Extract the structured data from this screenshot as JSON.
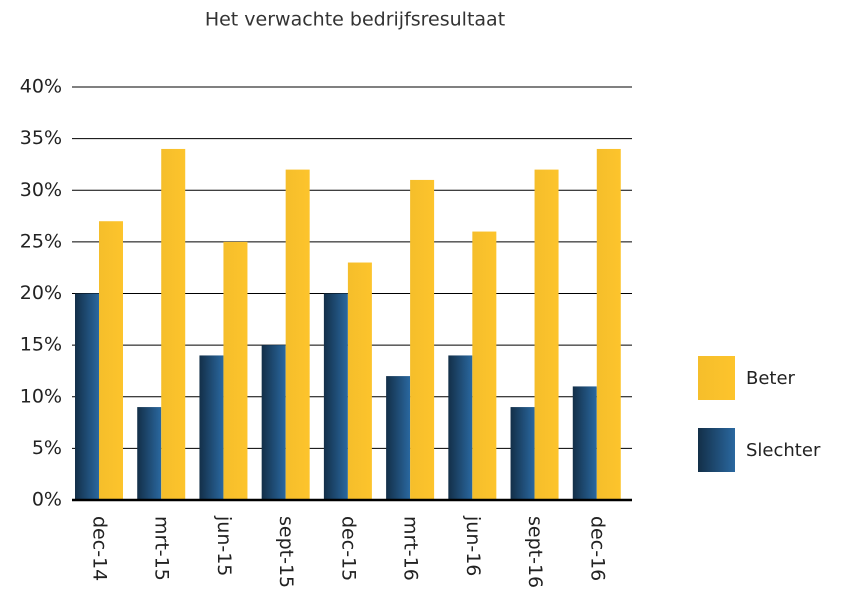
{
  "chart_data": {
    "type": "bar",
    "title": "Het verwachte bedrijfsresultaat",
    "categories": [
      "dec-14",
      "mrt-15",
      "jun-15",
      "sept-15",
      "dec-15",
      "mrt-16",
      "jun-16",
      "sept-16",
      "dec-16"
    ],
    "series": [
      {
        "name": "Slechter",
        "color": "#2a68a0",
        "values": [
          20,
          9,
          14,
          15,
          20,
          12,
          14,
          9,
          11
        ]
      },
      {
        "name": "Beter",
        "color": "#fdc42c",
        "values": [
          27,
          34,
          25,
          32,
          23,
          31,
          26,
          32,
          34
        ]
      }
    ],
    "ylim": [
      0,
      40
    ],
    "yticks": [
      {
        "value": 0,
        "label": "0%"
      },
      {
        "value": 5,
        "label": "5%"
      },
      {
        "value": 10,
        "label": "10%"
      },
      {
        "value": 15,
        "label": "15%"
      },
      {
        "value": 20,
        "label": "20%"
      },
      {
        "value": 25,
        "label": "25%"
      },
      {
        "value": 30,
        "label": "30%"
      },
      {
        "value": 35,
        "label": "35%"
      },
      {
        "value": 40,
        "label": "40%"
      }
    ],
    "grid": true,
    "legend": "right"
  }
}
